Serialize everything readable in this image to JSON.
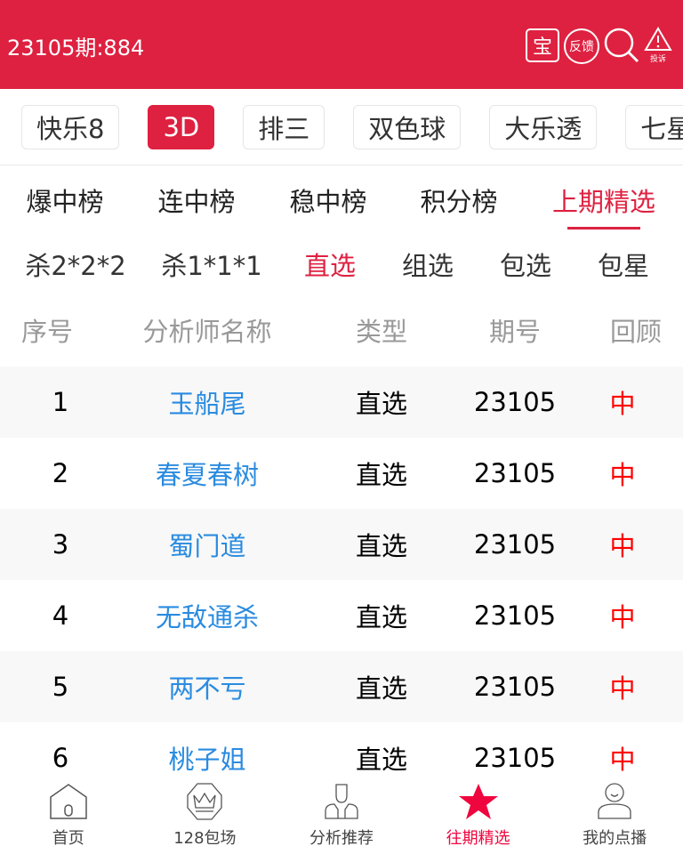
{
  "header": {
    "title": "23105期:884",
    "icons": {
      "bao": "宝",
      "feedback": "反馈",
      "complain": "投诉"
    }
  },
  "lotteries": [
    {
      "label": "快乐8"
    },
    {
      "label": "3D",
      "active": true
    },
    {
      "label": "排三"
    },
    {
      "label": "双色球"
    },
    {
      "label": "大乐透"
    },
    {
      "label": "七星"
    }
  ],
  "rank_tabs": [
    {
      "label": "爆中榜"
    },
    {
      "label": "连中榜"
    },
    {
      "label": "稳中榜"
    },
    {
      "label": "积分榜"
    },
    {
      "label": "上期精选",
      "active": true
    }
  ],
  "sub_tabs": [
    {
      "label": "杀2*2*2"
    },
    {
      "label": "杀1*1*1"
    },
    {
      "label": "直选",
      "active": true
    },
    {
      "label": "组选"
    },
    {
      "label": "包选"
    },
    {
      "label": "包星"
    }
  ],
  "table": {
    "headers": [
      "序号",
      "分析师名称",
      "类型",
      "期号",
      "回顾"
    ],
    "rows": [
      [
        "1",
        "玉船尾",
        "直选",
        "23105",
        "中"
      ],
      [
        "2",
        "春夏春树",
        "直选",
        "23105",
        "中"
      ],
      [
        "3",
        "蜀门道",
        "直选",
        "23105",
        "中"
      ],
      [
        "4",
        "无敌通杀",
        "直选",
        "23105",
        "中"
      ],
      [
        "5",
        "两不亏",
        "直选",
        "23105",
        "中"
      ],
      [
        "6",
        "桃子姐",
        "直选",
        "23105",
        "中"
      ]
    ]
  },
  "nav": [
    {
      "label": "首页",
      "icon": "home-icon"
    },
    {
      "label": "128包场",
      "icon": "crown-icon"
    },
    {
      "label": "分析推荐",
      "icon": "analyst-icon"
    },
    {
      "label": "往期精选",
      "icon": "star-icon",
      "active": true
    },
    {
      "label": "我的点播",
      "icon": "user-icon"
    }
  ],
  "colors": {
    "brand": "#DE2140",
    "link": "#2a8be0",
    "hit": "#FF0000",
    "nav_active": "#F0063E"
  }
}
